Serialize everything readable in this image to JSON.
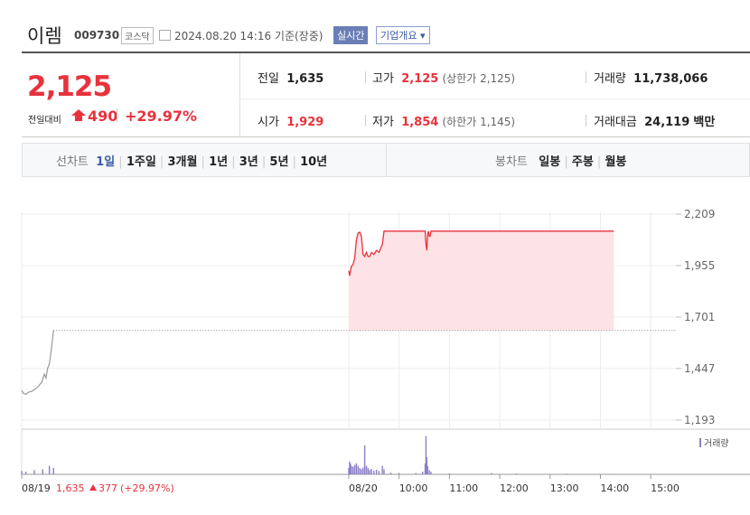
{
  "header": {
    "name": "이렘",
    "code": "009730",
    "market": "코스닥",
    "timestamp": "2024.08.20 14:16 기준(장중)",
    "realtime": "실시간",
    "company_info": "기업개요"
  },
  "quote": {
    "price": "2,125",
    "change_label": "전일대비",
    "change": "490",
    "change_pct": "+29.97%",
    "fields": [
      {
        "label": "전일",
        "value": "1,635"
      },
      {
        "label": "고가",
        "value": "2,125",
        "note": "(상한가 2,125)"
      },
      {
        "label": "거래량",
        "value": "11,738,066"
      },
      {
        "label": "시가",
        "value": "1,929"
      },
      {
        "label": "저가",
        "value": "1,854",
        "note": "(하한가 1,145)"
      },
      {
        "label": "거래대금",
        "value": "24,119",
        "unit": "백만"
      }
    ]
  },
  "tabs": {
    "line_chart": "선차트",
    "periods": [
      "1일",
      "1주일",
      "3개월",
      "1년",
      "3년",
      "5년",
      "10년"
    ],
    "candle_chart": "봉차트",
    "candle_periods": [
      "일봉",
      "주봉",
      "월봉"
    ]
  },
  "chart_data": {
    "type": "line",
    "xlim": [
      -390,
      390
    ],
    "xticks": [
      {
        "value": -390,
        "label": "08/19"
      },
      {
        "value": 0,
        "label": "08/20"
      },
      {
        "value": 60,
        "label": "10:00"
      },
      {
        "value": 120,
        "label": "11:00"
      },
      {
        "value": 180,
        "label": "12:00"
      },
      {
        "value": 240,
        "label": "13:00"
      },
      {
        "value": 300,
        "label": "14:00"
      },
      {
        "value": 360,
        "label": "15:00"
      }
    ],
    "ylim": [
      1148,
      2307
    ],
    "yticks": [
      {
        "value": 1193,
        "label": "1,193"
      },
      {
        "value": 1447,
        "label": "1,447"
      },
      {
        "value": 1701,
        "label": "1,701"
      },
      {
        "value": 1955,
        "label": "1,955"
      },
      {
        "value": 2209,
        "label": "2,209"
      }
    ],
    "grid": true,
    "baseline": 1635,
    "prev_close": "1,635",
    "prev_change": "377",
    "prev_change_pct": "(+29.97%)",
    "prev_day": {
      "color": "#9a9a9a",
      "x": [
        -390,
        -388,
        -385,
        -382,
        -378,
        -374,
        -370,
        -366,
        -363,
        -361,
        -359,
        -357,
        -355,
        -352
      ],
      "values": [
        1340,
        1325,
        1320,
        1330,
        1335,
        1345,
        1360,
        1380,
        1420,
        1400,
        1450,
        1470,
        1530,
        1635
      ]
    },
    "today": {
      "color": "#e8323c",
      "fill": "#fde3e5",
      "x": [
        0,
        1,
        3,
        5,
        7,
        9,
        11,
        13,
        15,
        17,
        19,
        21,
        23,
        25,
        27,
        30,
        33,
        36,
        40,
        42,
        60,
        80,
        91,
        92,
        93,
        94,
        95,
        96,
        97,
        98,
        99,
        120,
        200,
        316
      ],
      "values": [
        1929,
        1905,
        1950,
        1960,
        1990,
        2080,
        2115,
        2120,
        2100,
        2010,
        2000,
        2020,
        2000,
        2000,
        2020,
        2010,
        2030,
        2020,
        2060,
        2125,
        2125,
        2125,
        2125,
        2060,
        2030,
        2110,
        2125,
        2100,
        2100,
        2125,
        2125,
        2125,
        2125,
        2125
      ]
    },
    "volume": {
      "name": "거래량",
      "color": "#8d7fc7",
      "vlim": [
        0,
        1000000
      ],
      "x": [
        -390,
        -385,
        -375,
        -365,
        -357,
        -352,
        0,
        1,
        2,
        3,
        5,
        7,
        9,
        11,
        13,
        15,
        17,
        19,
        21,
        23,
        25,
        27,
        30,
        33,
        36,
        40,
        42,
        50,
        60,
        80,
        88,
        91,
        92,
        93,
        94,
        96,
        98,
        120,
        170,
        200,
        260,
        316
      ],
      "values": [
        80000,
        60000,
        100000,
        120000,
        200000,
        150000,
        150000,
        300000,
        250000,
        200000,
        180000,
        220000,
        260000,
        200000,
        150000,
        120000,
        160000,
        680000,
        200000,
        150000,
        100000,
        130000,
        90000,
        110000,
        80000,
        200000,
        120000,
        40000,
        30000,
        30000,
        60000,
        250000,
        900000,
        400000,
        200000,
        100000,
        60000,
        20000,
        30000,
        20000,
        15000,
        10000
      ]
    }
  }
}
